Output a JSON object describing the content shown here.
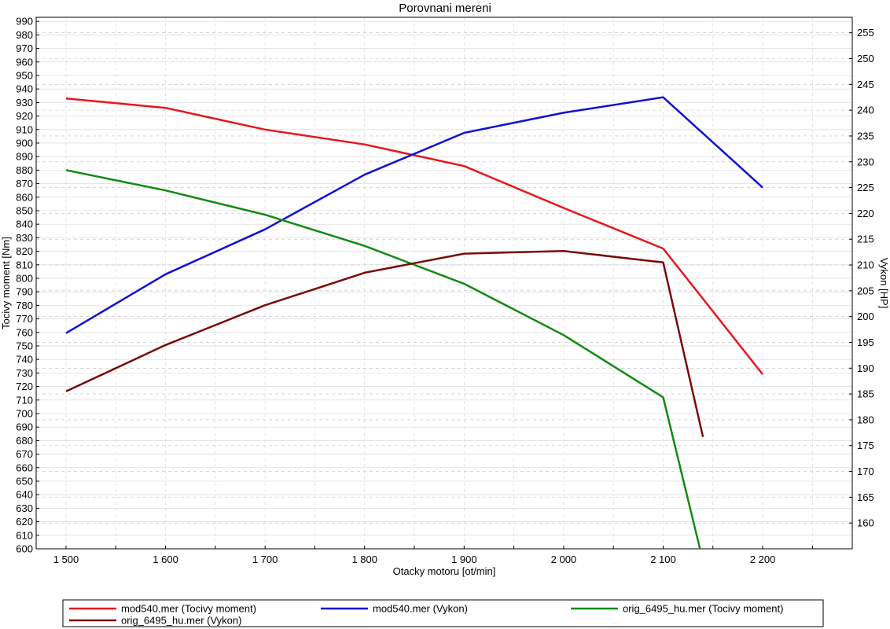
{
  "chart_data": {
    "type": "line",
    "title": "Porovnani mereni",
    "xlabel": "Otacky motoru [ot/min]",
    "ylabel_left": "Tocivy moment [Nm]",
    "ylabel_right": "Vykon [HP]",
    "xlim": [
      1470,
      2290
    ],
    "ylim_left": [
      600,
      993
    ],
    "ylim_right": [
      155,
      258
    ],
    "x_ticks": [
      1500,
      1600,
      1700,
      1800,
      1900,
      2000,
      2100,
      2200
    ],
    "x_tick_labels": [
      "1 500",
      "1 600",
      "1 700",
      "1 800",
      "1 900",
      "2 000",
      "2 100",
      "2 200"
    ],
    "y_left_ticks_start": 600,
    "y_left_ticks_end": 990,
    "y_left_ticks_step": 10,
    "y_right_ticks_start": 160,
    "y_right_ticks_end": 255,
    "y_right_ticks_step": 5,
    "grid": true,
    "legend_placement": "bottom",
    "series": [
      {
        "name": "mod540.mer  (Tocivy moment)",
        "axis": "left",
        "color": "#e8161b",
        "x": [
          1500,
          1600,
          1700,
          1800,
          1900,
          2000,
          2100,
          2200
        ],
        "y": [
          933,
          926,
          910,
          899,
          883,
          852,
          822,
          729
        ]
      },
      {
        "name": "mod540.mer  (Vykon)",
        "axis": "right",
        "color": "#1010d8",
        "x": [
          1500,
          1600,
          1700,
          1800,
          1900,
          2000,
          2100,
          2200
        ],
        "y": [
          196.8,
          208.2,
          216.9,
          227.5,
          235.6,
          239.5,
          242.5,
          225.0
        ]
      },
      {
        "name": "orig_6495_hu.mer  (Tocivy moment)",
        "axis": "left",
        "color": "#138a13",
        "x": [
          1500,
          1600,
          1700,
          1800,
          1900,
          2000,
          2100,
          2137
        ],
        "y": [
          880,
          865,
          847,
          824,
          796,
          758,
          712,
          600
        ]
      },
      {
        "name": "orig_6495_hu.mer  (Vykon)",
        "axis": "right",
        "color": "#7a0a0a",
        "x": [
          1500,
          1600,
          1700,
          1800,
          1900,
          2000,
          2100,
          2140
        ],
        "y": [
          185.5,
          194.5,
          202.2,
          208.5,
          212.2,
          212.7,
          210.5,
          176.7
        ]
      }
    ]
  }
}
